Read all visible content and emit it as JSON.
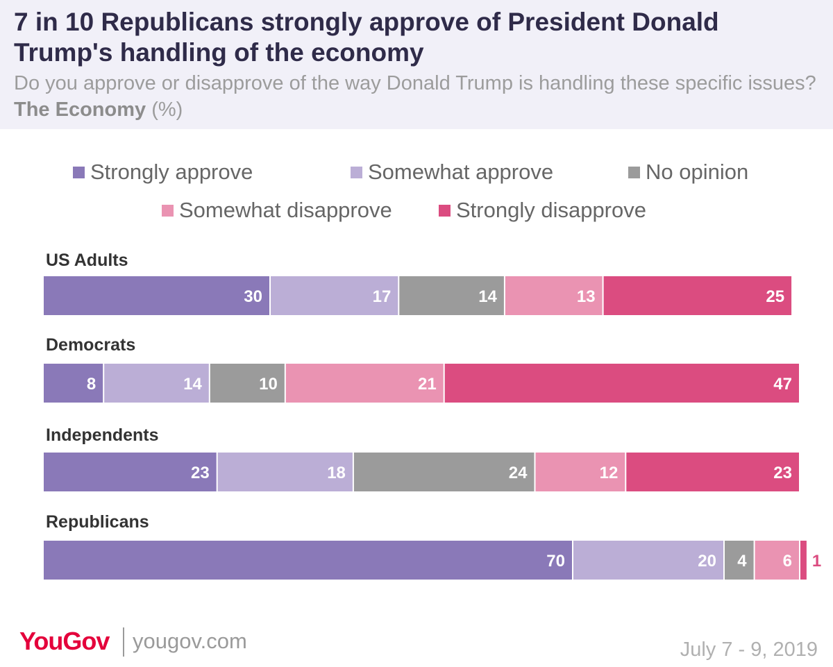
{
  "header": {
    "title": "7 in 10 Republicans strongly approve of President Donald Trump's handling of the economy",
    "question": "Do you approve or disapprove of the way Donald Trump is handling these specific issues?",
    "topic": "The Economy",
    "unit": "(%)"
  },
  "footer": {
    "logo": "YouGov",
    "site": "yougov.com",
    "date": "July 7 - 9, 2019"
  },
  "chart_data": {
    "type": "bar",
    "orientation": "horizontal",
    "stacked": true,
    "title": "7 in 10 Republicans strongly approve of President Donald Trump's handling of the economy",
    "xlabel": "",
    "ylabel": "",
    "categories": [
      "US Adults",
      "Democrats",
      "Independents",
      "Republicans"
    ],
    "series": [
      {
        "name": "Strongly approve",
        "color": "#8a79b8",
        "label_color": "#ffffff",
        "values": [
          30,
          8,
          23,
          70
        ]
      },
      {
        "name": "Somewhat approve",
        "color": "#bbaed6",
        "label_color": "#ffffff",
        "values": [
          17,
          14,
          18,
          20
        ]
      },
      {
        "name": "No opinion",
        "color": "#9b9b9b",
        "label_color": "#ffffff",
        "values": [
          14,
          10,
          24,
          4
        ]
      },
      {
        "name": "Somewhat disapprove",
        "color": "#ea93b2",
        "label_color": "#ffffff",
        "values": [
          13,
          21,
          12,
          6
        ]
      },
      {
        "name": "Strongly disapprove",
        "color": "#db4c80",
        "label_color": "#ffffff",
        "values": [
          25,
          47,
          23,
          1
        ]
      }
    ],
    "xlim": [
      0,
      100
    ],
    "legend_position": "top",
    "grid": false
  }
}
